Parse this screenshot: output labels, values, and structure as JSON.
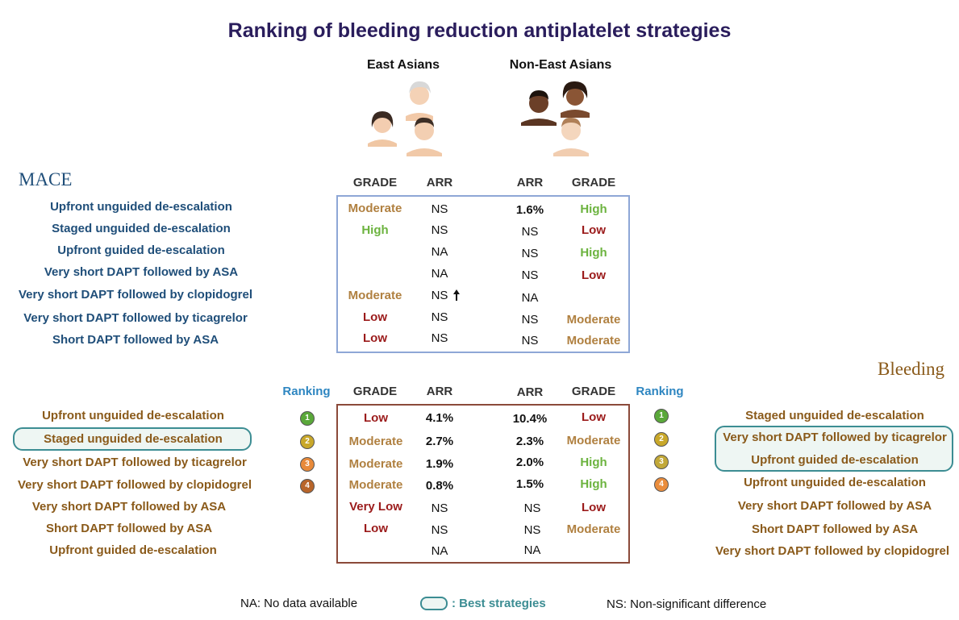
{
  "title": "Ranking of bleeding reduction antiplatelet strategies",
  "groups": {
    "east": "East Asians",
    "nonEast": "Non-East Asians"
  },
  "mace": {
    "section": "MACE",
    "headers": {
      "gradeEast": "GRADE",
      "arrEast": "ARR",
      "arrNon": "ARR",
      "gradeNon": "GRADE"
    },
    "rows": [
      {
        "strategy": "Upfront unguided de-escalation",
        "gradeEast": "Moderate",
        "arrEast": "NS",
        "arrNon": "1.6%",
        "gradeNon": "High"
      },
      {
        "strategy": "Staged unguided de-escalation",
        "gradeEast": "High",
        "arrEast": "NS",
        "arrNon": "NS",
        "gradeNon": "Low"
      },
      {
        "strategy": "Upfront guided de-escalation",
        "gradeEast": "",
        "arrEast": "NA",
        "arrNon": "NS",
        "gradeNon": "High"
      },
      {
        "strategy": "Very short DAPT followed by ASA",
        "gradeEast": "",
        "arrEast": "NA",
        "arrNon": "NS",
        "gradeNon": "Low"
      },
      {
        "strategy": "Very short DAPT followed by clopidogrel",
        "gradeEast": "Moderate",
        "arrEast": "NS",
        "arrNon": "NA",
        "gradeNon": ""
      },
      {
        "strategy": "Very short DAPT followed by ticagrelor",
        "gradeEast": "Low",
        "arrEast": "NS",
        "arrNon": "NS",
        "gradeNon": "Moderate"
      },
      {
        "strategy": "Short DAPT followed by ASA",
        "gradeEast": "Low",
        "arrEast": "NS",
        "arrNon": "NS",
        "gradeNon": "Moderate"
      }
    ]
  },
  "bleeding": {
    "section": "Bleeding",
    "headers": {
      "rankEast": "Ranking",
      "gradeEast": "GRADE",
      "arrEast": "ARR",
      "arrNon": "ARR",
      "gradeNon": "GRADE",
      "rankNon": "Ranking"
    },
    "leftStrategies": [
      "Upfront unguided de-escalation",
      "Staged unguided de-escalation",
      "Very short DAPT followed by ticagrelor",
      "Very short DAPT followed by clopidogrel",
      "Very short DAPT followed by ASA",
      "Short DAPT followed by ASA",
      "Upfront guided de-escalation"
    ],
    "rightStrategies": [
      "Staged unguided de-escalation",
      "Very short DAPT followed by ticagrelor",
      "Upfront guided de-escalation",
      "Upfront unguided de-escalation",
      "Very short DAPT followed by ASA",
      "Short DAPT followed by ASA",
      "Very short DAPT followed by clopidogrel"
    ],
    "ranksEast": [
      "1",
      "2",
      "3",
      "4"
    ],
    "ranksNon": [
      "1",
      "2",
      "3",
      "4"
    ],
    "rows": [
      {
        "gradeEast": "Low",
        "arrEast": "4.1%",
        "arrNon": "10.4%",
        "gradeNon": "Low"
      },
      {
        "gradeEast": "Moderate",
        "arrEast": "2.7%",
        "arrNon": "2.3%",
        "gradeNon": "Moderate"
      },
      {
        "gradeEast": "Moderate",
        "arrEast": "1.9%",
        "arrNon": "2.0%",
        "gradeNon": "High"
      },
      {
        "gradeEast": "Moderate",
        "arrEast": "0.8%",
        "arrNon": "1.5%",
        "gradeNon": "High"
      },
      {
        "gradeEast": "Very Low",
        "arrEast": "NS",
        "arrNon": "NS",
        "gradeNon": "Low"
      },
      {
        "gradeEast": "Low",
        "arrEast": "NS",
        "arrNon": "NS",
        "gradeNon": "Moderate"
      },
      {
        "gradeEast": "",
        "arrEast": "NA",
        "arrNon": "NA",
        "gradeNon": ""
      }
    ]
  },
  "legend": {
    "na": "NA: No data available",
    "best": ": Best strategies",
    "ns": "NS: Non-significant difference"
  },
  "colors": {
    "high": "#6cb33f",
    "moderate": "#b08040",
    "low": "#9b1b1b",
    "rank1": "#5aa83a",
    "rank2": "#c9a82a",
    "rank3": "#e88a3a",
    "rank4": "#b8652a",
    "rankN3": "#c2a838",
    "rankN4": "#ea8d3c"
  }
}
